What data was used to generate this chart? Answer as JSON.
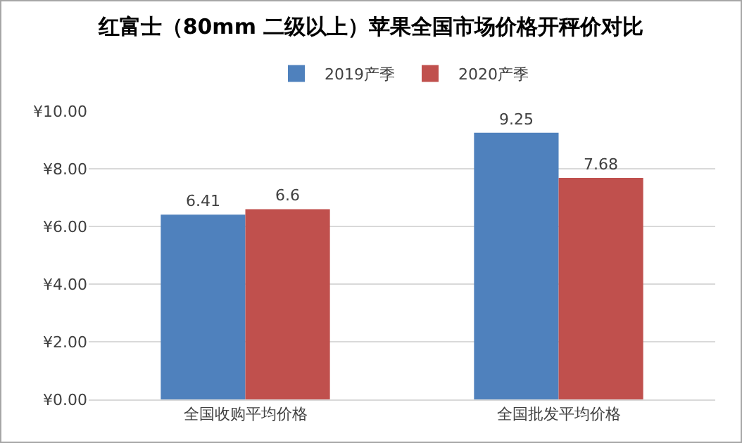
{
  "chart_data": {
    "type": "bar",
    "title": "红富士（80mm 二级以上）苹果全国市场价格开秤价对比",
    "categories": [
      "全国收购平均价格",
      "全国批发平均价格"
    ],
    "series": [
      {
        "name": "2019产季",
        "color": "#4f81bd",
        "values": [
          6.41,
          9.25
        ]
      },
      {
        "name": "2020产季",
        "color": "#c0504d",
        "values": [
          6.6,
          7.68
        ]
      }
    ],
    "ylim": [
      0,
      10
    ],
    "yticks": [
      {
        "value": 0,
        "label": "¥0.00"
      },
      {
        "value": 2,
        "label": "¥2.00"
      },
      {
        "value": 4,
        "label": "¥4.00"
      },
      {
        "value": 6,
        "label": "¥6.00"
      },
      {
        "value": 8,
        "label": "¥8.00"
      },
      {
        "value": 10,
        "label": "¥10.00"
      }
    ],
    "grid": "y",
    "legend": "top",
    "data_labels": true
  }
}
